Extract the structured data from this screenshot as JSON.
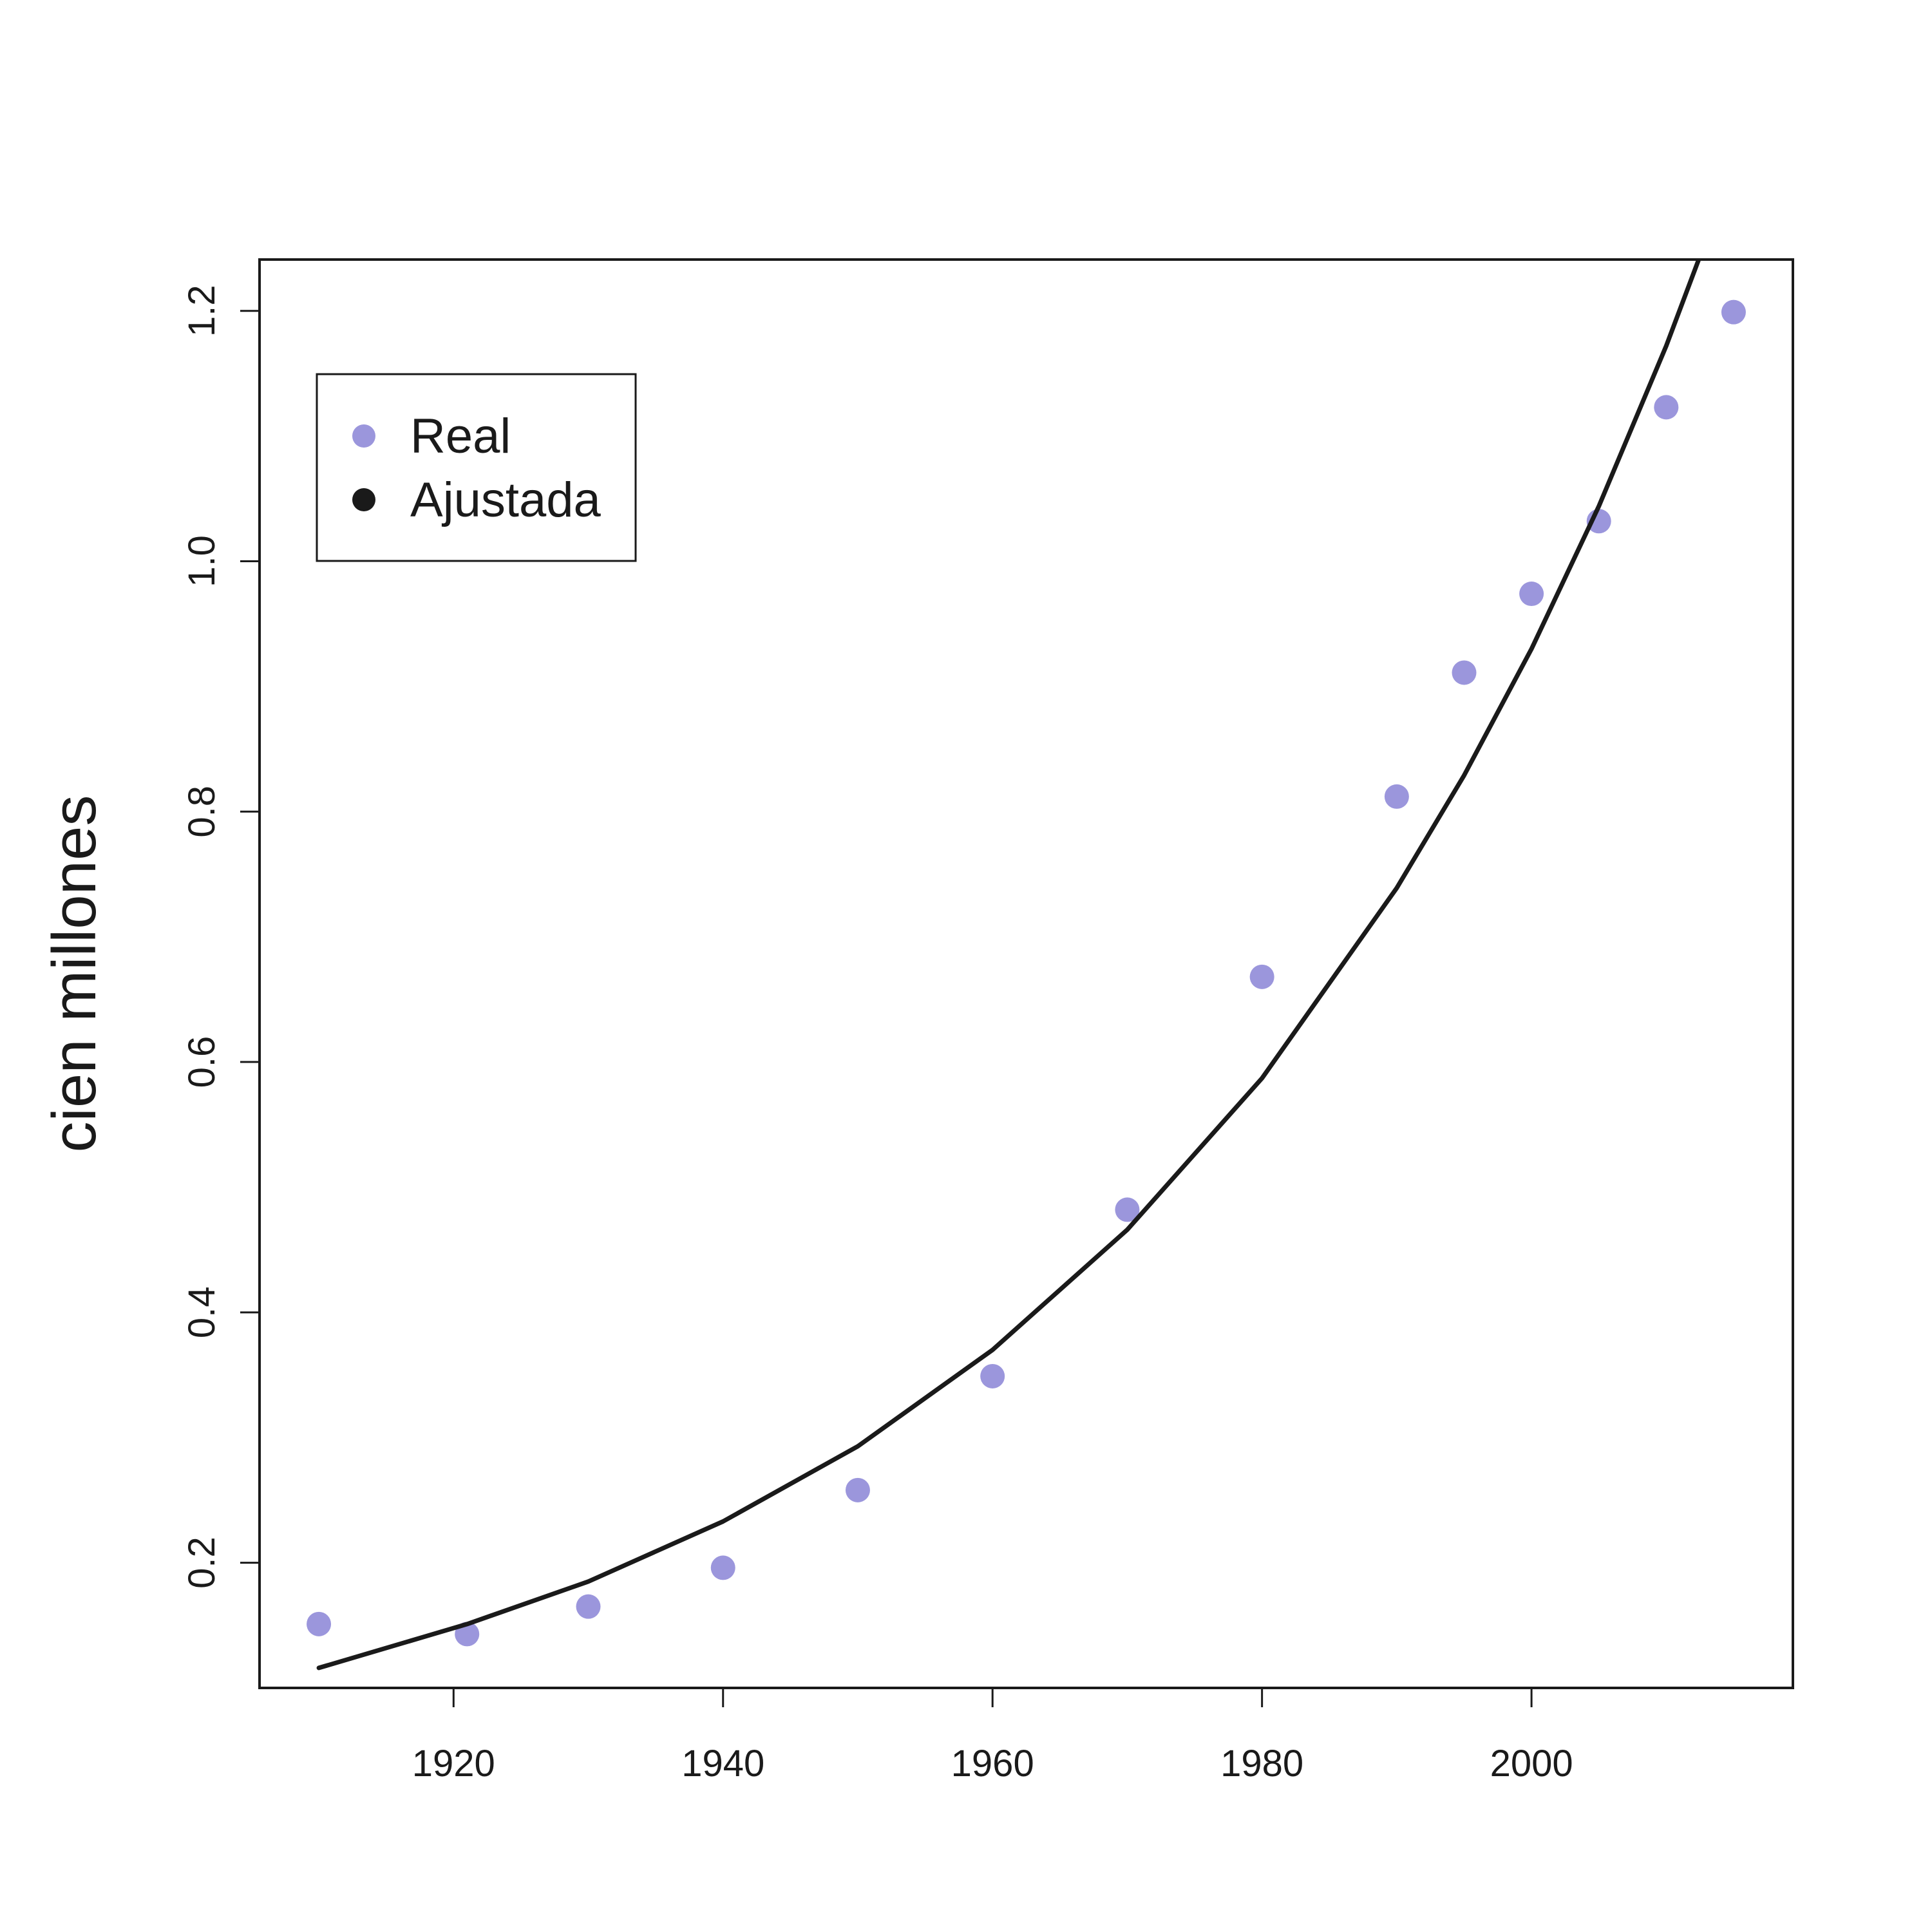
{
  "chart_data": {
    "type": "scatter",
    "title": "",
    "xlabel": "",
    "ylabel": "cien millones",
    "xlim": [
      1905.6,
      2019.4
    ],
    "ylim": [
      0.1,
      1.241
    ],
    "x_ticks": [
      1920,
      1940,
      1960,
      1980,
      2000
    ],
    "x_tick_labels": [
      "1920",
      "1940",
      "1960",
      "1980",
      "2000"
    ],
    "y_ticks": [
      0.2,
      0.4,
      0.6,
      0.8,
      1.0,
      1.2
    ],
    "y_tick_labels": [
      "0.2",
      "0.4",
      "0.6",
      "0.8",
      "1.0",
      "1.2"
    ],
    "grid": false,
    "legend_position": "top-left",
    "series": [
      {
        "name": "Real",
        "kind": "points",
        "color": "#9b96dc",
        "x": [
          1910,
          1921,
          1930,
          1940,
          1950,
          1960,
          1970,
          1980,
          1990,
          1995,
          2000,
          2005,
          2010,
          2015
        ],
        "y": [
          0.151,
          0.143,
          0.165,
          0.196,
          0.258,
          0.349,
          0.482,
          0.668,
          0.812,
          0.911,
          0.974,
          1.032,
          1.123,
          1.199
        ]
      },
      {
        "name": "Ajustada",
        "kind": "line",
        "color": "#1a1a1a",
        "x": [
          1910,
          1921,
          1930,
          1940,
          1950,
          1960,
          1970,
          1980,
          1990,
          1995,
          2000,
          2005,
          2010,
          2015
        ],
        "y": [
          0.116,
          0.151,
          0.185,
          0.233,
          0.293,
          0.37,
          0.466,
          0.587,
          0.739,
          0.829,
          0.93,
          1.044,
          1.172,
          1.315
        ]
      }
    ]
  }
}
